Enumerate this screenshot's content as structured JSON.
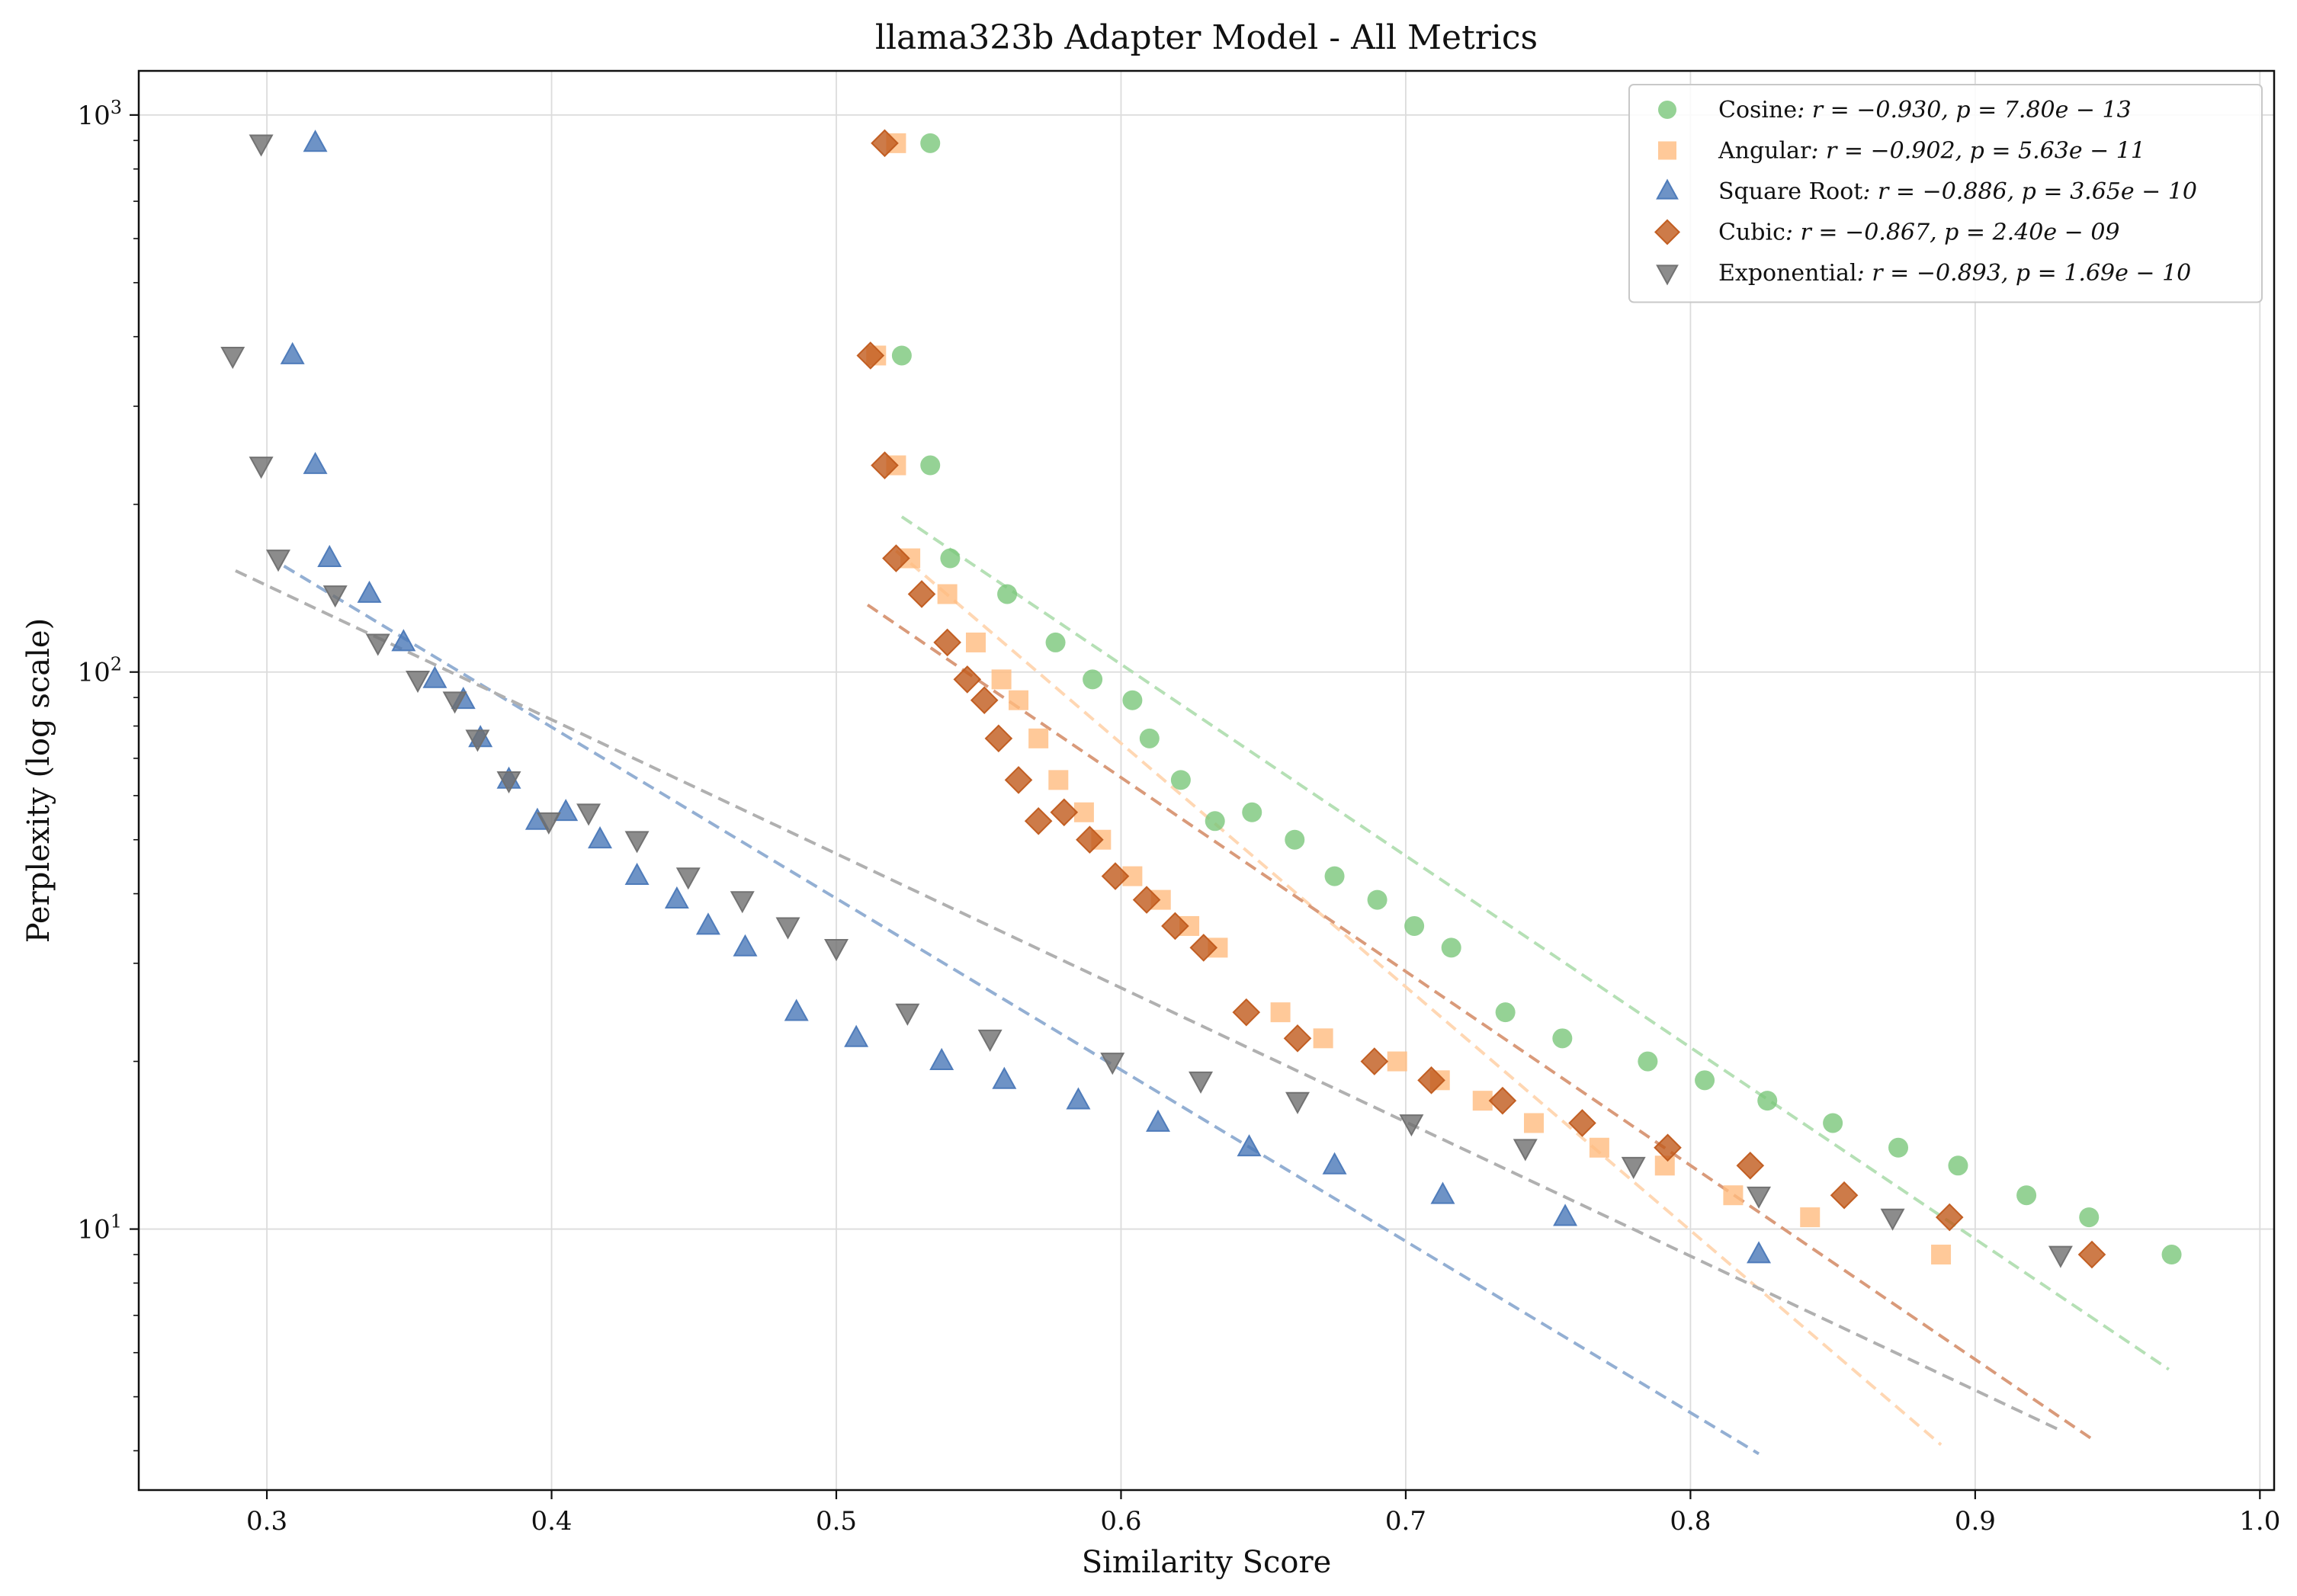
{
  "chart_data": {
    "type": "scatter",
    "title": "llama323b Adapter Model - All Metrics",
    "xlabel": "Similarity Score",
    "ylabel": "Perplexity (log scale)",
    "xlim": [
      0.255,
      1.005
    ],
    "ylim": [
      3.4,
      1200
    ],
    "yscale": "log",
    "grid": true,
    "legend_position": "top-right",
    "x_ticks": [
      0.3,
      0.4,
      0.5,
      0.6,
      0.7,
      0.8,
      0.9,
      1.0
    ],
    "x_tick_labels": [
      "0.3",
      "0.4",
      "0.5",
      "0.6",
      "0.7",
      "0.8",
      "0.9",
      "1.0"
    ],
    "y_ticks": [
      10,
      100,
      1000
    ],
    "y_tick_labels": [
      {
        "base": "10",
        "exp": "1"
      },
      {
        "base": "10",
        "exp": "2"
      },
      {
        "base": "10",
        "exp": "3"
      }
    ],
    "series": [
      {
        "name": "Cosine",
        "legend_stats": ": r = −0.930, p = 7.80e − 13",
        "marker": "circle",
        "color": "#7bc77b",
        "line_color": "#b5e0b5",
        "points": [
          [
            0.533,
            890
          ],
          [
            0.523,
            370
          ],
          [
            0.533,
            235
          ],
          [
            0.54,
            160
          ],
          [
            0.56,
            138
          ],
          [
            0.577,
            113
          ],
          [
            0.59,
            97
          ],
          [
            0.604,
            89
          ],
          [
            0.61,
            76
          ],
          [
            0.621,
            64
          ],
          [
            0.633,
            54
          ],
          [
            0.646,
            56
          ],
          [
            0.661,
            50
          ],
          [
            0.675,
            43
          ],
          [
            0.69,
            39
          ],
          [
            0.703,
            35
          ],
          [
            0.716,
            32
          ],
          [
            0.735,
            24.5
          ],
          [
            0.755,
            22
          ],
          [
            0.785,
            20
          ],
          [
            0.805,
            18.5
          ],
          [
            0.827,
            17
          ],
          [
            0.85,
            15.5
          ],
          [
            0.873,
            14
          ],
          [
            0.894,
            13
          ],
          [
            0.918,
            11.5
          ],
          [
            0.94,
            10.5
          ],
          [
            0.969,
            9.0
          ]
        ],
        "fit": [
          [
            0.523,
            190
          ],
          [
            0.968,
            5.6
          ]
        ]
      },
      {
        "name": "Angular",
        "legend_stats": ": r = −0.902, p = 5.63e − 11",
        "marker": "square",
        "color": "#ffbb80",
        "line_color": "#ffd7b3",
        "points": [
          [
            0.521,
            890
          ],
          [
            0.514,
            370
          ],
          [
            0.521,
            235
          ],
          [
            0.526,
            160
          ],
          [
            0.539,
            138
          ],
          [
            0.549,
            113
          ],
          [
            0.558,
            97
          ],
          [
            0.564,
            89
          ],
          [
            0.571,
            76
          ],
          [
            0.578,
            64
          ],
          [
            0.587,
            56
          ],
          [
            0.593,
            50
          ],
          [
            0.604,
            43
          ],
          [
            0.614,
            39
          ],
          [
            0.624,
            35
          ],
          [
            0.634,
            32
          ],
          [
            0.656,
            24.5
          ],
          [
            0.671,
            22
          ],
          [
            0.697,
            20
          ],
          [
            0.712,
            18.5
          ],
          [
            0.727,
            17
          ],
          [
            0.745,
            15.5
          ],
          [
            0.768,
            14
          ],
          [
            0.791,
            13
          ],
          [
            0.815,
            11.5
          ],
          [
            0.842,
            10.5
          ],
          [
            0.888,
            9.0
          ]
        ],
        "fit": [
          [
            0.521,
            165
          ],
          [
            0.888,
            4.1
          ]
        ]
      },
      {
        "name": "Square Root",
        "legend_stats": ": r = −0.886, p = 3.65e − 10",
        "marker": "triangle-up",
        "color": "#4a78b8",
        "line_color": "#93afd3",
        "points": [
          [
            0.317,
            890
          ],
          [
            0.309,
            370
          ],
          [
            0.317,
            235
          ],
          [
            0.322,
            160
          ],
          [
            0.336,
            138
          ],
          [
            0.348,
            113
          ],
          [
            0.359,
            97
          ],
          [
            0.369,
            89
          ],
          [
            0.375,
            76
          ],
          [
            0.385,
            64
          ],
          [
            0.395,
            54
          ],
          [
            0.405,
            56
          ],
          [
            0.417,
            50
          ],
          [
            0.43,
            43
          ],
          [
            0.444,
            39
          ],
          [
            0.455,
            35
          ],
          [
            0.468,
            32
          ],
          [
            0.486,
            24.5
          ],
          [
            0.507,
            22
          ],
          [
            0.537,
            20
          ],
          [
            0.559,
            18.5
          ],
          [
            0.585,
            17
          ],
          [
            0.613,
            15.5
          ],
          [
            0.645,
            14
          ],
          [
            0.675,
            13
          ],
          [
            0.713,
            11.5
          ],
          [
            0.756,
            10.5
          ],
          [
            0.824,
            9.0
          ]
        ],
        "fit": [
          [
            0.306,
            155
          ],
          [
            0.824,
            3.95
          ]
        ]
      },
      {
        "name": "Cubic",
        "legend_stats": ": r = −0.867, p = 2.40e − 09",
        "marker": "diamond",
        "color": "#c05a1c",
        "line_color": "#d99a7a",
        "points": [
          [
            0.517,
            890
          ],
          [
            0.512,
            370
          ],
          [
            0.517,
            235
          ],
          [
            0.521,
            160
          ],
          [
            0.53,
            138
          ],
          [
            0.539,
            113
          ],
          [
            0.546,
            97
          ],
          [
            0.552,
            89
          ],
          [
            0.557,
            76
          ],
          [
            0.564,
            64
          ],
          [
            0.571,
            54
          ],
          [
            0.58,
            56
          ],
          [
            0.589,
            50
          ],
          [
            0.598,
            43
          ],
          [
            0.609,
            39
          ],
          [
            0.619,
            35
          ],
          [
            0.629,
            32
          ],
          [
            0.644,
            24.5
          ],
          [
            0.662,
            22
          ],
          [
            0.689,
            20
          ],
          [
            0.709,
            18.5
          ],
          [
            0.734,
            17
          ],
          [
            0.762,
            15.5
          ],
          [
            0.792,
            14
          ],
          [
            0.821,
            13
          ],
          [
            0.854,
            11.5
          ],
          [
            0.891,
            10.5
          ],
          [
            0.941,
            9.0
          ]
        ],
        "fit": [
          [
            0.511,
            132
          ],
          [
            0.941,
            4.2
          ]
        ]
      },
      {
        "name": "Exponential",
        "legend_stats": ": r = −0.893, p = 1.69e − 10",
        "marker": "triangle-down",
        "color": "#6f6f6f",
        "line_color": "#b0b0b0",
        "points": [
          [
            0.298,
            890
          ],
          [
            0.288,
            370
          ],
          [
            0.298,
            235
          ],
          [
            0.304,
            160
          ],
          [
            0.324,
            138
          ],
          [
            0.339,
            113
          ],
          [
            0.353,
            97
          ],
          [
            0.366,
            89
          ],
          [
            0.374,
            76
          ],
          [
            0.385,
            64
          ],
          [
            0.399,
            54
          ],
          [
            0.413,
            56
          ],
          [
            0.43,
            50
          ],
          [
            0.448,
            43
          ],
          [
            0.467,
            39
          ],
          [
            0.483,
            35
          ],
          [
            0.5,
            32
          ],
          [
            0.525,
            24.5
          ],
          [
            0.554,
            22
          ],
          [
            0.597,
            20
          ],
          [
            0.628,
            18.5
          ],
          [
            0.662,
            17
          ],
          [
            0.702,
            15.5
          ],
          [
            0.742,
            14
          ],
          [
            0.78,
            13
          ],
          [
            0.824,
            11.5
          ],
          [
            0.871,
            10.5
          ],
          [
            0.93,
            9.0
          ]
        ],
        "fit": [
          [
            0.289,
            152
          ],
          [
            0.93,
            4.35
          ]
        ]
      }
    ]
  }
}
